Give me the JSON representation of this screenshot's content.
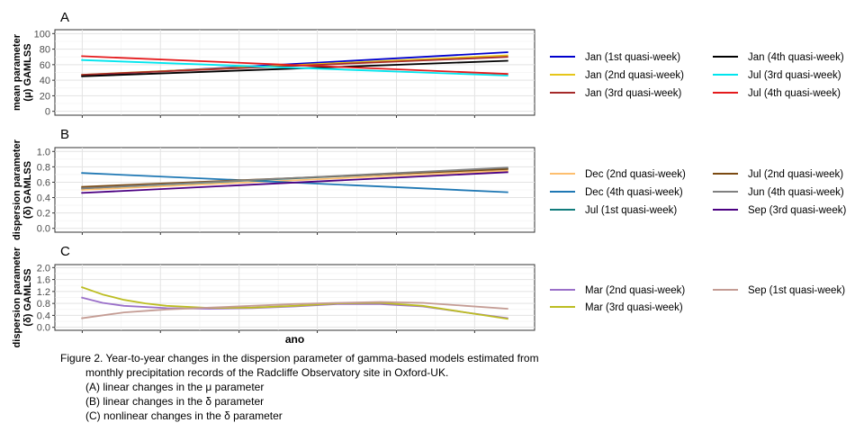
{
  "figure": {
    "x_label": "ano",
    "caption": [
      "Figure 2. Year-to-year changes in the dispersion parameter of gamma-based models estimated from",
      "monthly precipitation records of the Radcliffe Observatory site in Oxford-UK.",
      "(A) linear changes in the μ parameter",
      "(B) linear changes in the δ parameter",
      "(C) nonlinear changes in the δ parameter"
    ]
  },
  "chart_data": [
    {
      "panel": "A",
      "type": "line",
      "ylabel": [
        "mean parameter",
        "(μ) GAMLSS"
      ],
      "ylim": [
        0,
        100
      ],
      "yticks": [
        0,
        20,
        40,
        60,
        80,
        100
      ],
      "xlim": [
        0,
        1
      ],
      "x_tick_labels_shown": false,
      "grid": true,
      "legend_placement": "right",
      "series": [
        {
          "name": "Jan (1st quasi-week)",
          "color": "#0000cd",
          "x": [
            0,
            1
          ],
          "y": [
            46,
            76
          ]
        },
        {
          "name": "Jan (2nd quasi-week)",
          "color": "#e6c619",
          "x": [
            0,
            1
          ],
          "y": [
            47,
            72
          ]
        },
        {
          "name": "Jan (3rd quasi-week)",
          "color": "#a52a2a",
          "x": [
            0,
            1
          ],
          "y": [
            47,
            70
          ]
        },
        {
          "name": "Jan (4th quasi-week)",
          "color": "#000000",
          "x": [
            0,
            1
          ],
          "y": [
            45,
            65
          ]
        },
        {
          "name": "Jul (3rd quasi-week)",
          "color": "#00e5ee",
          "x": [
            0,
            1
          ],
          "y": [
            66,
            46
          ]
        },
        {
          "name": "Jul (4th quasi-week)",
          "color": "#e41a1c",
          "x": [
            0,
            1
          ],
          "y": [
            71,
            48
          ]
        }
      ]
    },
    {
      "panel": "B",
      "type": "line",
      "ylabel": [
        "dispersion parameter",
        "(δ) GAMLSS"
      ],
      "ylim": [
        0,
        1
      ],
      "yticks": [
        0.0,
        0.2,
        0.4,
        0.6,
        0.8,
        1.0
      ],
      "xlim": [
        0,
        1
      ],
      "x_tick_labels_shown": false,
      "grid": true,
      "legend_placement": "right",
      "series": [
        {
          "name": "Dec (2nd quasi-week)",
          "color": "#fdbf6f",
          "x": [
            0,
            1
          ],
          "y": [
            0.5,
            0.75
          ]
        },
        {
          "name": "Dec (4th quasi-week)",
          "color": "#1f78b4",
          "x": [
            0,
            1
          ],
          "y": [
            0.72,
            0.47
          ]
        },
        {
          "name": "Jul (1st quasi-week)",
          "color": "#117c7c",
          "x": [
            0,
            1
          ],
          "y": [
            0.52,
            0.78
          ]
        },
        {
          "name": "Jul (2nd quasi-week)",
          "color": "#7b4a12",
          "x": [
            0,
            1
          ],
          "y": [
            0.54,
            0.77
          ]
        },
        {
          "name": "Jun (4th quasi-week)",
          "color": "#808080",
          "x": [
            0,
            1
          ],
          "y": [
            0.52,
            0.79
          ]
        },
        {
          "name": "Sep (3rd quasi-week)",
          "color": "#4b0082",
          "x": [
            0,
            1
          ],
          "y": [
            0.46,
            0.73
          ]
        }
      ]
    },
    {
      "panel": "C",
      "type": "line",
      "ylabel": [
        "dispersion parameter",
        "(δ) GAMLSS"
      ],
      "ylim": [
        0,
        2
      ],
      "yticks": [
        0.0,
        0.4,
        0.8,
        1.2,
        1.6,
        2.0
      ],
      "xlim": [
        0,
        1
      ],
      "x_tick_labels_shown": false,
      "grid": true,
      "legend_placement": "right",
      "series": [
        {
          "name": "Mar (2nd quasi-week)",
          "color": "#9a6fc9",
          "x": [
            0,
            0.05,
            0.1,
            0.2,
            0.3,
            0.4,
            0.5,
            0.6,
            0.7,
            0.8,
            0.9,
            1.0
          ],
          "y": [
            1.0,
            0.82,
            0.72,
            0.64,
            0.62,
            0.64,
            0.7,
            0.78,
            0.78,
            0.7,
            0.5,
            0.3
          ]
        },
        {
          "name": "Mar (3rd quasi-week)",
          "color": "#bcbd22",
          "x": [
            0,
            0.05,
            0.1,
            0.15,
            0.2,
            0.3,
            0.4,
            0.5,
            0.6,
            0.7,
            0.8,
            0.9,
            1.0
          ],
          "y": [
            1.35,
            1.1,
            0.92,
            0.8,
            0.72,
            0.65,
            0.66,
            0.72,
            0.8,
            0.82,
            0.72,
            0.5,
            0.28
          ]
        },
        {
          "name": "Sep (1st quasi-week)",
          "color": "#c49c94",
          "x": [
            0,
            0.1,
            0.2,
            0.3,
            0.4,
            0.5,
            0.6,
            0.7,
            0.8,
            0.9,
            1.0
          ],
          "y": [
            0.3,
            0.5,
            0.6,
            0.66,
            0.72,
            0.78,
            0.82,
            0.85,
            0.82,
            0.72,
            0.62
          ]
        }
      ]
    }
  ]
}
